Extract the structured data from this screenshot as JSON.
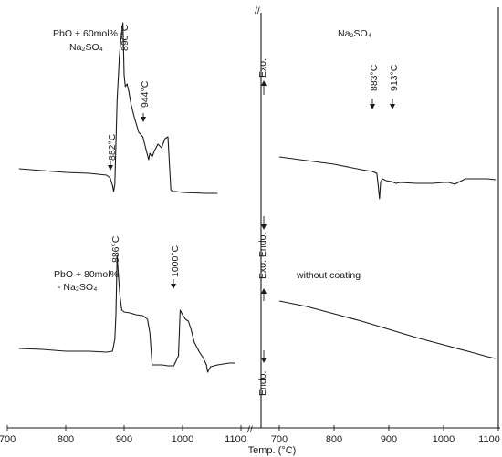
{
  "chart_data": [
    {
      "type": "line",
      "title": "",
      "xlabel": "Temp. (°C)",
      "ylabel": "",
      "xlim": [
        700,
        1100
      ],
      "tick_labels": [
        "700",
        "800",
        "900",
        "1000",
        "1100"
      ],
      "series": [
        {
          "name": "PbO + 60mol%-Na₂SO₄",
          "x": [
            720,
            760,
            800,
            840,
            870,
            876,
            880,
            882,
            884,
            888,
            892,
            895,
            898,
            900,
            902,
            905,
            908,
            912,
            918,
            925,
            932,
            938,
            942,
            944,
            948,
            952,
            958,
            964,
            970,
            975,
            978,
            980,
            983,
            990,
            1000,
            1040,
            1060
          ],
          "y": [
            185,
            187,
            189,
            190,
            192,
            195,
            203,
            210,
            202,
            110,
            60,
            40,
            25,
            82,
            95,
            92,
            100,
            115,
            130,
            145,
            150,
            165,
            175,
            168,
            172,
            165,
            158,
            162,
            152,
            150,
            185,
            208,
            210,
            210,
            211,
            212,
            212
          ]
        },
        {
          "name": "PbO + 80mol%-Na₂SO₄",
          "x": [
            720,
            760,
            800,
            840,
            870,
            880,
            884,
            886,
            888,
            890,
            893,
            896,
            900,
            910,
            920,
            932,
            940,
            944,
            948,
            955,
            965,
            975,
            985,
            993,
            996,
            1000,
            1005,
            1010,
            1015,
            1020,
            1028,
            1035,
            1041,
            1043,
            1048,
            1060,
            1080,
            1090
          ],
          "y": [
            382,
            383,
            385,
            385,
            386,
            385,
            372,
            345,
            280,
            300,
            325,
            340,
            342,
            343,
            345,
            346,
            350,
            365,
            400,
            400,
            400,
            401,
            401,
            390,
            340,
            345,
            350,
            352,
            362,
            375,
            385,
            392,
            400,
            408,
            402,
            400,
            398,
            398
          ]
        },
        {
          "name": "Na₂SO₄",
          "x": [
            700,
            750,
            800,
            850,
            870,
            878,
            880,
            882,
            883,
            885,
            888,
            895,
            905,
            913,
            920,
            950,
            980,
            1000,
            1010,
            1020,
            1030,
            1040,
            1060,
            1080,
            1095
          ],
          "y": [
            172,
            176,
            180,
            186,
            188,
            190,
            200,
            212,
            218,
            200,
            196,
            198,
            199,
            201,
            200,
            201,
            201,
            200,
            200,
            202,
            199,
            196,
            196,
            196,
            197
          ]
        },
        {
          "name": "without coating",
          "x": [
            700,
            750,
            800,
            850,
            900,
            950,
            1000,
            1050,
            1080,
            1095
          ],
          "y": [
            330,
            336,
            344,
            352,
            361,
            370,
            378,
            386,
            391,
            393
          ]
        }
      ]
    }
  ],
  "annotations": {
    "t882": "882°C",
    "t890": "890°C",
    "t944": "944°C",
    "t886": "886°C",
    "t1000": "1000°C",
    "t883": "883°C",
    "t913": "913°C"
  },
  "labels": {
    "pbo60_line1": "PbO + 60mol% -",
    "pbo60_line2": "Na₂SO₄",
    "pbo80_line1": "PbO + 80mol%",
    "pbo80_line2": "- Na₂SO₄",
    "na2so4": "Na₂SO₄",
    "without": "without coating",
    "exo": "Exo.",
    "endo": "Endo.",
    "exo_endo": "Exo. Endo.",
    "endo_bottom": "Endo.",
    "break_mark": "//"
  }
}
